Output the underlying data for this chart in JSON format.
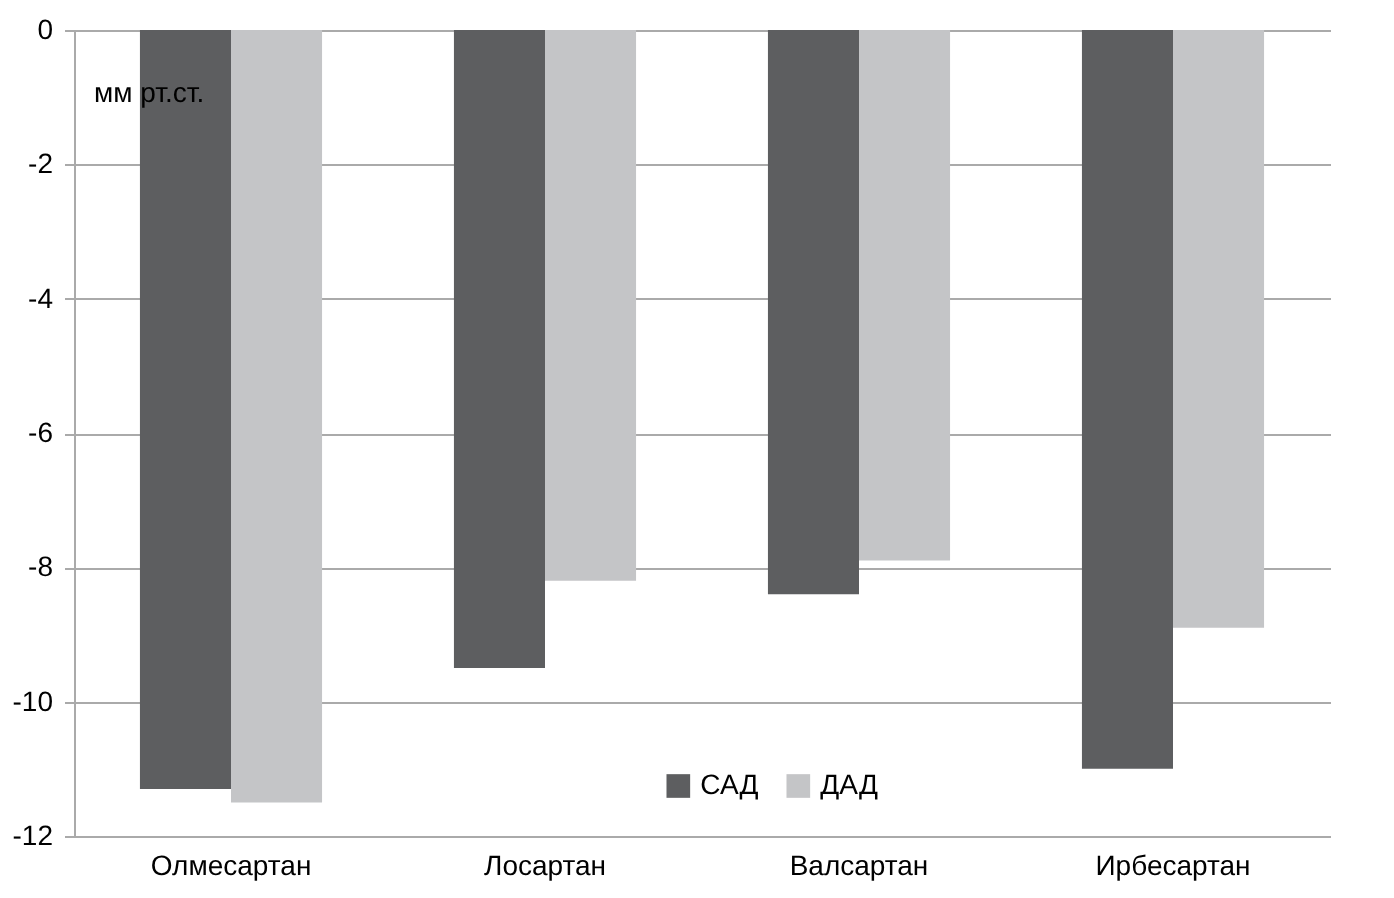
{
  "chart_data": {
    "type": "bar",
    "ylabel": "мм рт.ст.",
    "categories": [
      "Олмесартан",
      "Лосартан",
      "Валсартан",
      "Ирбесартан"
    ],
    "series": [
      {
        "name": "САД",
        "color": "#5d5e60",
        "values": [
          -11.3,
          -9.5,
          -8.4,
          -11.0
        ]
      },
      {
        "name": "ДАД",
        "color": "#c4c5c7",
        "values": [
          -11.5,
          -8.2,
          -7.9,
          -8.9
        ]
      }
    ],
    "ylim": [
      -12,
      0
    ],
    "yticks": [
      -12,
      -10,
      -8,
      -6,
      -4,
      -2,
      0
    ],
    "grid": "y",
    "legend": "bottom"
  }
}
